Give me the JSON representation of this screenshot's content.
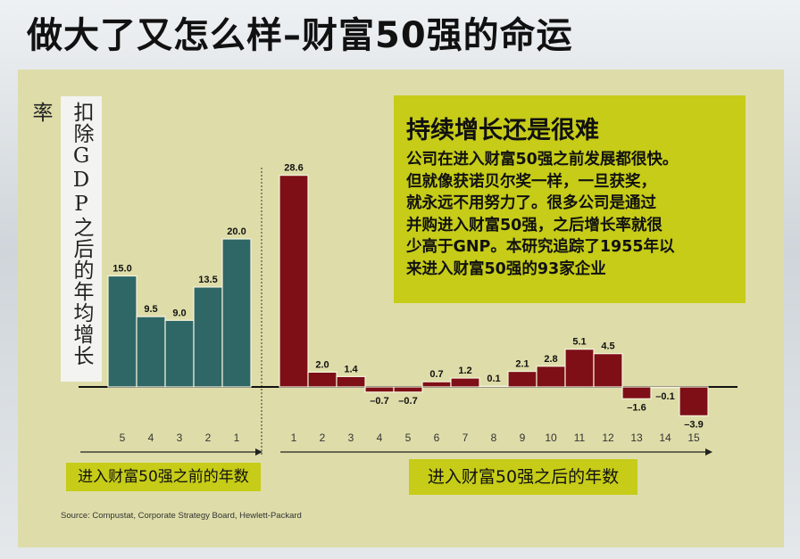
{
  "page": {
    "title": "做大了又怎么样–财富50强的命运"
  },
  "chart_data": {
    "type": "bar",
    "ylabel": "扣除GDP之后的年均增长率",
    "colors": {
      "before": "#2f6767",
      "after": "#7e0f16",
      "panel": "#dedda9",
      "callout": "#c6cc17"
    },
    "before": {
      "label": "进入财富50强之前的年数",
      "categories": [
        "5",
        "4",
        "3",
        "2",
        "1"
      ],
      "values": [
        15.0,
        9.5,
        9.0,
        13.5,
        20.0
      ],
      "value_labels": [
        "15.0",
        "9.5",
        "9.0",
        "13.5",
        "20.0"
      ]
    },
    "after": {
      "label": "进入财富50强之后的年数",
      "categories": [
        "1",
        "2",
        "3",
        "4",
        "5",
        "6",
        "7",
        "8",
        "9",
        "10",
        "11",
        "12",
        "13",
        "14",
        "15"
      ],
      "values": [
        28.6,
        2.0,
        1.4,
        -0.7,
        -0.7,
        0.7,
        1.2,
        0.1,
        2.1,
        2.8,
        5.1,
        4.5,
        -1.6,
        -0.1,
        -3.9
      ],
      "value_labels": [
        "28.6",
        "2.0",
        "1.4",
        "–0.7",
        "–0.7",
        "0.7",
        "1.2",
        "0.1",
        "2.1",
        "2.8",
        "5.1",
        "4.5",
        "–1.6",
        "–0.1",
        "–3.9"
      ]
    }
  },
  "callout": {
    "heading": "持续增长还是很难",
    "lines": [
      "公司在进入财富50强之前发展都很快。",
      "但就像获诺贝尔奖一样，一旦获奖，",
      "就永远不用努力了。很多公司是通过",
      "并购进入财富50强，之后增长率就很",
      "少高于GNP。本研究追踪了1955年以",
      "来进入财富50强的93家企业"
    ]
  },
  "source": "Source: Compustat, Corporate Strategy Board, Hewlett-Packard"
}
